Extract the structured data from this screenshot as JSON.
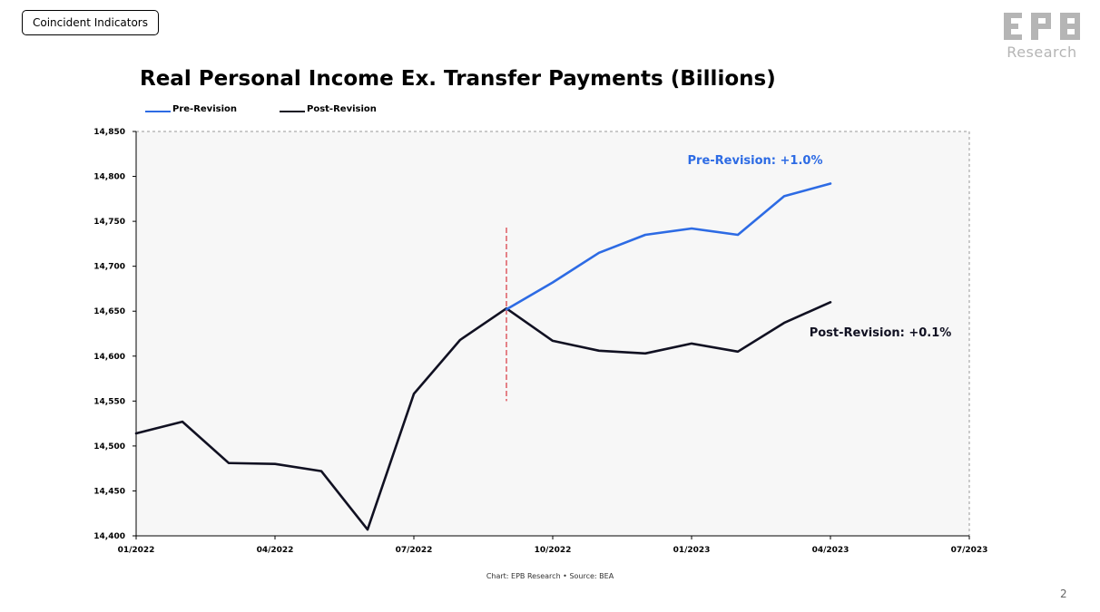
{
  "header": {
    "section_tag": "Coincident Indicators",
    "logo_letters": "EPB",
    "logo_text": "Research"
  },
  "page_number": "2",
  "colors": {
    "pre_revision": "#2d6be4",
    "post_revision": "#111122",
    "divider": "#d9363e",
    "plot_background": "#f7f7f7",
    "logo": "#b5b5b5"
  },
  "chart_data": {
    "type": "line",
    "title": "Real Personal Income Ex. Transfer Payments (Billions)",
    "source": "Chart: EPB Research •  Source: BEA",
    "legend_position": "top-left",
    "xlim": [
      "2022-01-01",
      "2023-07-01"
    ],
    "ylim": [
      14400,
      14850
    ],
    "yticks": [
      14400,
      14450,
      14500,
      14550,
      14600,
      14650,
      14700,
      14750,
      14800,
      14850
    ],
    "ytick_labels": [
      "14,400",
      "14,450",
      "14,500",
      "14,550",
      "14,600",
      "14,650",
      "14,700",
      "14,750",
      "14,800",
      "14,850"
    ],
    "xticks": [
      "2022-01-01",
      "2022-04-01",
      "2022-07-01",
      "2022-10-01",
      "2023-01-01",
      "2023-04-01",
      "2023-07-01"
    ],
    "xtick_labels": [
      "01/2022",
      "04/2022",
      "07/2022",
      "10/2022",
      "01/2023",
      "04/2023",
      "07/2023"
    ],
    "revision_marker": {
      "x": "2022-09-01",
      "y_range": [
        14550,
        14743
      ]
    },
    "series": [
      {
        "name": "Pre-Revision",
        "color": "#2d6be4",
        "x": [
          "2022-09-01",
          "2022-10-01",
          "2022-11-01",
          "2022-12-01",
          "2023-01-01",
          "2023-02-01",
          "2023-03-01",
          "2023-04-01"
        ],
        "values": [
          14652,
          14682,
          14715,
          14735,
          14742,
          14735,
          14778,
          14792
        ]
      },
      {
        "name": "Post-Revision",
        "color": "#111122",
        "x": [
          "2022-01-01",
          "2022-02-01",
          "2022-03-01",
          "2022-04-01",
          "2022-05-01",
          "2022-06-01",
          "2022-07-01",
          "2022-08-01",
          "2022-09-01",
          "2022-10-01",
          "2022-11-01",
          "2022-12-01",
          "2023-01-01",
          "2023-02-01",
          "2023-03-01",
          "2023-04-01"
        ],
        "values": [
          14514,
          14527,
          14481,
          14480,
          14472,
          14407,
          14558,
          14618,
          14653,
          14617,
          14606,
          14603,
          14614,
          14605,
          14637,
          14660
        ]
      }
    ],
    "annotations": [
      {
        "text": "Pre-Revision: +1.0%",
        "series": "Pre-Revision"
      },
      {
        "text": "Post-Revision: +0.1%",
        "series": "Post-Revision"
      }
    ]
  }
}
